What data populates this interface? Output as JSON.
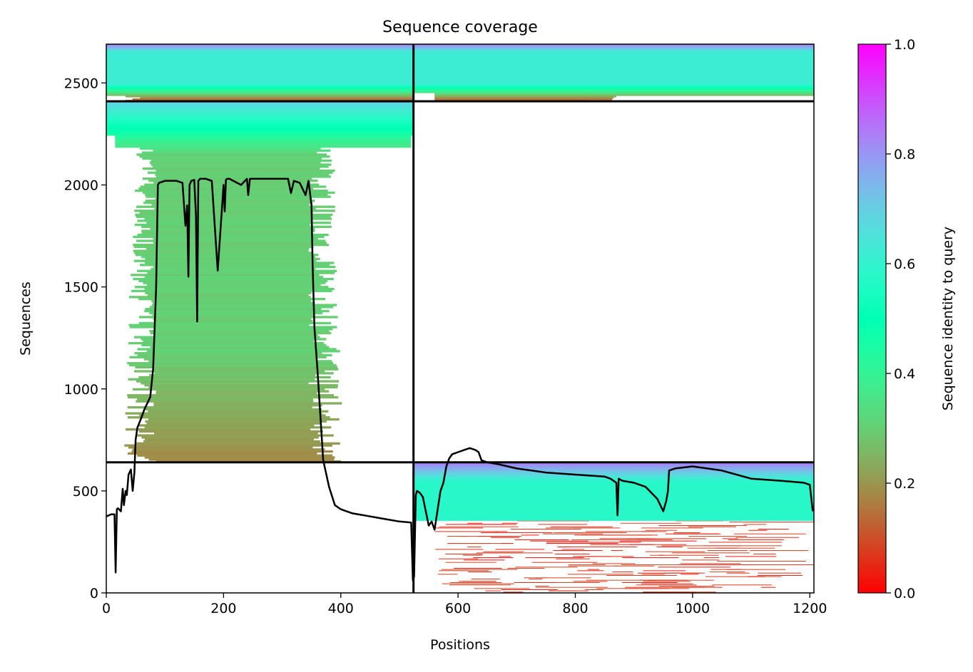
{
  "chart_data": {
    "type": "heatmap",
    "title": "Sequence coverage",
    "xlabel": "Positions",
    "ylabel": "Sequences",
    "xlim": [
      0,
      1207
    ],
    "ylim": [
      0,
      2690
    ],
    "x_ticks": [
      0,
      200,
      400,
      600,
      800,
      1000,
      1200
    ],
    "y_ticks": [
      0,
      500,
      1000,
      1500,
      2000,
      2500
    ],
    "chain_boundary_position": 524,
    "block_boundaries_sequences": [
      640,
      2410
    ],
    "colorbar": {
      "label": "Sequence identity to query",
      "range": [
        0,
        1
      ],
      "ticks": [
        0.0,
        0.2,
        0.4,
        0.6,
        0.8,
        1.0
      ],
      "tick_labels": [
        "0.0",
        "0.2",
        "0.4",
        "0.6",
        "0.8",
        "1.0"
      ],
      "colormap": "rainbow_r"
    },
    "blocks": [
      {
        "name": "paired",
        "seq_range": [
          2410,
          2690
        ],
        "positions": [
          0,
          1207
        ],
        "identity_top": 0.85,
        "identity_mid": 0.62,
        "identity_bottom": 0.1
      },
      {
        "name": "chain1_unpaired",
        "seq_range": [
          640,
          2410
        ],
        "positions": [
          0,
          524
        ],
        "identity_top": 0.7,
        "identity_mid": 0.3,
        "identity_bottom": 0.18
      },
      {
        "name": "chain2_unpaired",
        "seq_range": [
          0,
          640
        ],
        "positions": [
          524,
          1207
        ],
        "identity_top": 0.85,
        "identity_mid": 0.58,
        "identity_bottom": 0.05
      }
    ],
    "coverage_line": {
      "name": "coverage",
      "x": [
        0,
        8,
        14,
        16,
        18,
        20,
        25,
        28,
        30,
        33,
        35,
        38,
        42,
        45,
        48,
        50,
        53,
        60,
        65,
        70,
        75,
        80,
        85,
        88,
        90,
        100,
        120,
        130,
        135,
        138,
        140,
        142,
        145,
        150,
        153,
        155,
        157,
        160,
        170,
        180,
        190,
        200,
        202,
        204,
        206,
        210,
        230,
        240,
        242,
        245,
        250,
        280,
        300,
        310,
        315,
        320,
        330,
        340,
        345,
        350,
        352,
        355,
        360,
        370,
        380,
        390,
        400,
        420,
        440,
        460,
        480,
        500,
        520,
        523,
        525,
        528,
        530,
        535,
        540,
        550,
        555,
        560,
        570,
        575,
        580,
        585,
        590,
        600,
        610,
        620,
        630,
        635,
        640,
        650,
        670,
        700,
        750,
        800,
        850,
        860,
        870,
        872,
        874,
        880,
        900,
        920,
        940,
        950,
        955,
        958,
        960,
        970,
        1000,
        1050,
        1100,
        1150,
        1190,
        1200,
        1205
      ],
      "y": [
        375,
        385,
        385,
        100,
        410,
        415,
        400,
        510,
        430,
        500,
        480,
        580,
        605,
        500,
        590,
        750,
        810,
        860,
        900,
        930,
        960,
        1100,
        1500,
        2000,
        2010,
        2020,
        2020,
        2010,
        1800,
        1900,
        1550,
        2000,
        2020,
        2025,
        1850,
        1330,
        2020,
        2030,
        2030,
        2020,
        1580,
        2000,
        1870,
        2025,
        2030,
        2030,
        2000,
        2030,
        1950,
        2030,
        2030,
        2030,
        2030,
        2030,
        1960,
        2020,
        2010,
        1950,
        2020,
        1900,
        1600,
        1300,
        1100,
        650,
        520,
        430,
        410,
        390,
        380,
        370,
        360,
        350,
        345,
        60,
        80,
        480,
        500,
        490,
        470,
        330,
        350,
        310,
        500,
        540,
        620,
        660,
        680,
        690,
        700,
        710,
        700,
        690,
        650,
        640,
        630,
        610,
        590,
        580,
        570,
        560,
        540,
        380,
        560,
        550,
        540,
        520,
        460,
        400,
        450,
        500,
        600,
        610,
        620,
        600,
        560,
        550,
        540,
        530,
        400
      ]
    }
  }
}
